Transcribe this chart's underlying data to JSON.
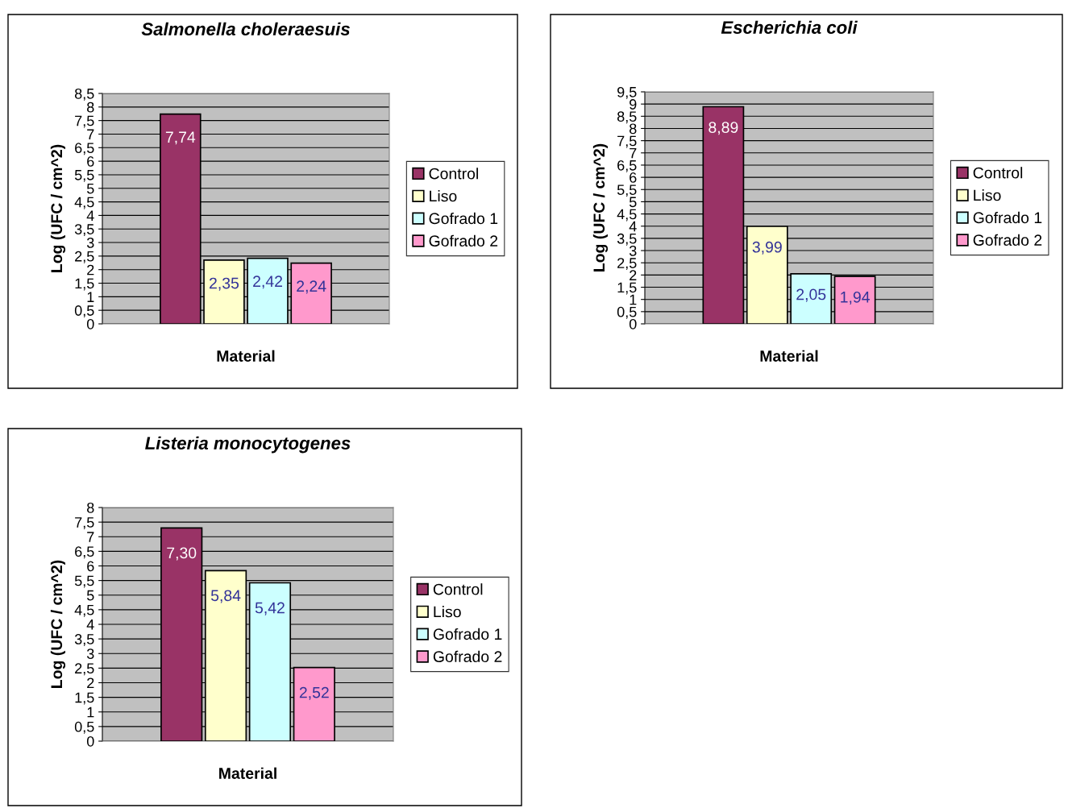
{
  "chart_data": [
    {
      "type": "bar",
      "title": "Salmonella choleraesuis",
      "xlabel": "Material",
      "ylabel": "Log (UFC / cm^2)",
      "categories": [
        null
      ],
      "ylim": [
        0,
        8.5
      ],
      "yticks": [
        0,
        {
          "value": 0.5,
          "label": "0,5"
        },
        1,
        {
          "value": 1.5,
          "label": "1,5"
        },
        2,
        {
          "value": 2.5,
          "label": "2,5"
        },
        3,
        {
          "value": 3.5,
          "label": "3,5"
        },
        4,
        {
          "value": 4.5,
          "label": "4,5"
        },
        5,
        {
          "value": 5.5,
          "label": "5,5"
        },
        6,
        {
          "value": 6.5,
          "label": "6,5"
        },
        7,
        {
          "value": 7.5,
          "label": "7,5"
        },
        8,
        {
          "value": 8.5,
          "label": "8,5"
        }
      ],
      "grid": "y",
      "legend": "right",
      "series": [
        {
          "name": "Control",
          "color": "#993366",
          "values": [
            7.74
          ],
          "value_labels": [
            "7,74"
          ]
        },
        {
          "name": "Liso",
          "color": "#ffffcc",
          "values": [
            2.35
          ],
          "value_labels": [
            "2,35"
          ]
        },
        {
          "name": "Gofrado 1",
          "color": "#ccffff",
          "values": [
            2.42
          ],
          "value_labels": [
            "2,42"
          ]
        },
        {
          "name": "Gofrado 2",
          "color": "#ff99cc",
          "values": [
            2.24
          ],
          "value_labels": [
            "2,24"
          ]
        }
      ]
    },
    {
      "type": "bar",
      "title": "Escherichia coli",
      "xlabel": "Material",
      "ylabel": "Log (UFC / cm^2)",
      "categories": [
        null
      ],
      "ylim": [
        0,
        9.5
      ],
      "yticks": [
        0,
        {
          "value": 0.5,
          "label": "0,5"
        },
        1,
        {
          "value": 1.5,
          "label": "1,5"
        },
        2,
        {
          "value": 2.5,
          "label": "2,5"
        },
        3,
        {
          "value": 3.5,
          "label": "3,5"
        },
        4,
        {
          "value": 4.5,
          "label": "4,5"
        },
        5,
        {
          "value": 5.5,
          "label": "5,5"
        },
        6,
        {
          "value": 6.5,
          "label": "6,5"
        },
        7,
        {
          "value": 7.5,
          "label": "7,5"
        },
        8,
        {
          "value": 8.5,
          "label": "8,5"
        },
        9,
        {
          "value": 9.5,
          "label": "9,5"
        }
      ],
      "grid": "y",
      "legend": "right",
      "series": [
        {
          "name": "Control",
          "color": "#993366",
          "values": [
            8.89
          ],
          "value_labels": [
            "8,89"
          ]
        },
        {
          "name": "Liso",
          "color": "#ffffcc",
          "values": [
            3.99
          ],
          "value_labels": [
            "3,99"
          ]
        },
        {
          "name": "Gofrado 1",
          "color": "#ccffff",
          "values": [
            2.05
          ],
          "value_labels": [
            "2,05"
          ]
        },
        {
          "name": "Gofrado 2",
          "color": "#ff99cc",
          "values": [
            1.94
          ],
          "value_labels": [
            "1,94"
          ]
        }
      ]
    },
    {
      "type": "bar",
      "title": "Listeria monocytogenes",
      "xlabel": "Material",
      "ylabel": "Log (UFC / cm^2)",
      "categories": [
        null
      ],
      "ylim": [
        0,
        8
      ],
      "yticks": [
        0,
        {
          "value": 0.5,
          "label": "0,5"
        },
        1,
        {
          "value": 1.5,
          "label": "1,5"
        },
        2,
        {
          "value": 2.5,
          "label": "2,5"
        },
        3,
        {
          "value": 3.5,
          "label": "3,5"
        },
        4,
        {
          "value": 4.5,
          "label": "4,5"
        },
        5,
        {
          "value": 5.5,
          "label": "5,5"
        },
        6,
        {
          "value": 6.5,
          "label": "6,5"
        },
        7,
        {
          "value": 7.5,
          "label": "7,5"
        },
        8
      ],
      "grid": "y",
      "legend": "right",
      "series": [
        {
          "name": "Control",
          "color": "#993366",
          "values": [
            7.3
          ],
          "value_labels": [
            "7,30"
          ]
        },
        {
          "name": "Liso",
          "color": "#ffffcc",
          "values": [
            5.84
          ],
          "value_labels": [
            "5,84"
          ]
        },
        {
          "name": "Gofrado 1",
          "color": "#ccffff",
          "values": [
            5.42
          ],
          "value_labels": [
            "5,42"
          ]
        },
        {
          "name": "Gofrado 2",
          "color": "#ff99cc",
          "values": [
            2.52
          ],
          "value_labels": [
            "2,52"
          ]
        }
      ]
    }
  ]
}
